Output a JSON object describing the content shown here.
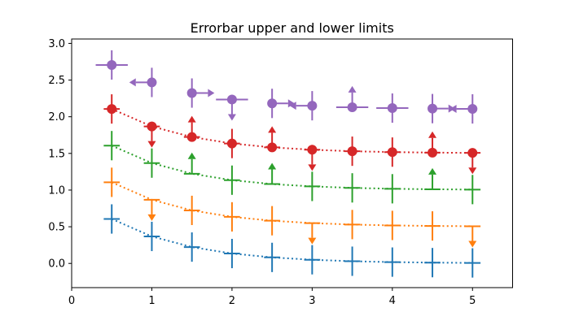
{
  "chart_data": {
    "type": "scatter",
    "title": "Errorbar upper and lower limits",
    "xlabel": "",
    "ylabel": "",
    "xlim": [
      0,
      5.5
    ],
    "ylim": [
      -0.33,
      3.06
    ],
    "xticks": [
      "0",
      "1",
      "2",
      "3",
      "4",
      "5"
    ],
    "yticks": [
      "0.0",
      "0.5",
      "1.0",
      "1.5",
      "2.0",
      "2.5",
      "3.0"
    ],
    "grid": false,
    "legend": "none",
    "x": [
      0.5,
      1.0,
      1.5,
      2.0,
      2.5,
      3.0,
      3.5,
      4.0,
      4.5,
      5.0
    ],
    "series": [
      {
        "color": "#1f77b4",
        "marker": "none",
        "linestyle": "dotted",
        "y": [
          0.606,
          0.368,
          0.223,
          0.135,
          0.082,
          0.05,
          0.03,
          0.018,
          0.011,
          0.007
        ],
        "yerr": 0.2,
        "xerr": 0.1,
        "uplims": [
          false,
          false,
          false,
          false,
          false,
          false,
          false,
          false,
          false,
          false
        ],
        "lolims": [
          false,
          false,
          false,
          false,
          false,
          false,
          false,
          false,
          false,
          false
        ]
      },
      {
        "color": "#ff7f0e",
        "marker": "none",
        "linestyle": "dotted",
        "y": [
          1.106,
          0.868,
          0.723,
          0.635,
          0.582,
          0.55,
          0.53,
          0.518,
          0.511,
          0.507
        ],
        "yerr": 0.2,
        "xerr": 0.1,
        "uplims": [
          false,
          true,
          false,
          false,
          false,
          true,
          false,
          false,
          false,
          true
        ],
        "lolims": [
          false,
          false,
          false,
          false,
          false,
          false,
          false,
          false,
          false,
          false
        ]
      },
      {
        "color": "#2ca02c",
        "marker": "none",
        "linestyle": "dotted",
        "y": [
          1.606,
          1.368,
          1.223,
          1.135,
          1.082,
          1.05,
          1.03,
          1.018,
          1.011,
          1.007
        ],
        "yerr": 0.2,
        "xerr": 0.1,
        "uplims": [
          false,
          false,
          false,
          false,
          false,
          false,
          false,
          false,
          false,
          false
        ],
        "lolims": [
          false,
          false,
          true,
          false,
          true,
          false,
          false,
          false,
          true,
          false
        ]
      },
      {
        "color": "#d62728",
        "marker": "circle",
        "linestyle": "dotted",
        "y": [
          2.106,
          1.868,
          1.723,
          1.635,
          1.582,
          1.55,
          1.53,
          1.518,
          1.511,
          1.507
        ],
        "yerr": 0.2,
        "xerr": 0.1,
        "uplims": [
          false,
          true,
          false,
          false,
          false,
          true,
          false,
          false,
          false,
          true
        ],
        "lolims": [
          false,
          false,
          true,
          false,
          true,
          false,
          false,
          false,
          true,
          false
        ]
      },
      {
        "color": "#9467bd",
        "marker": "circle",
        "linestyle": "none",
        "y": [
          2.706,
          2.468,
          2.323,
          2.235,
          2.182,
          2.15,
          2.13,
          2.118,
          2.111,
          2.107
        ],
        "yerr": 0.2,
        "xerr": 0.2,
        "uplims": [
          false,
          false,
          false,
          true,
          false,
          false,
          false,
          false,
          false,
          false
        ],
        "lolims": [
          false,
          false,
          false,
          false,
          false,
          false,
          true,
          false,
          false,
          false
        ],
        "xuplims": [
          false,
          true,
          false,
          false,
          false,
          true,
          false,
          false,
          false,
          true
        ],
        "xlolims": [
          false,
          false,
          true,
          false,
          true,
          false,
          false,
          false,
          true,
          false
        ]
      }
    ]
  }
}
